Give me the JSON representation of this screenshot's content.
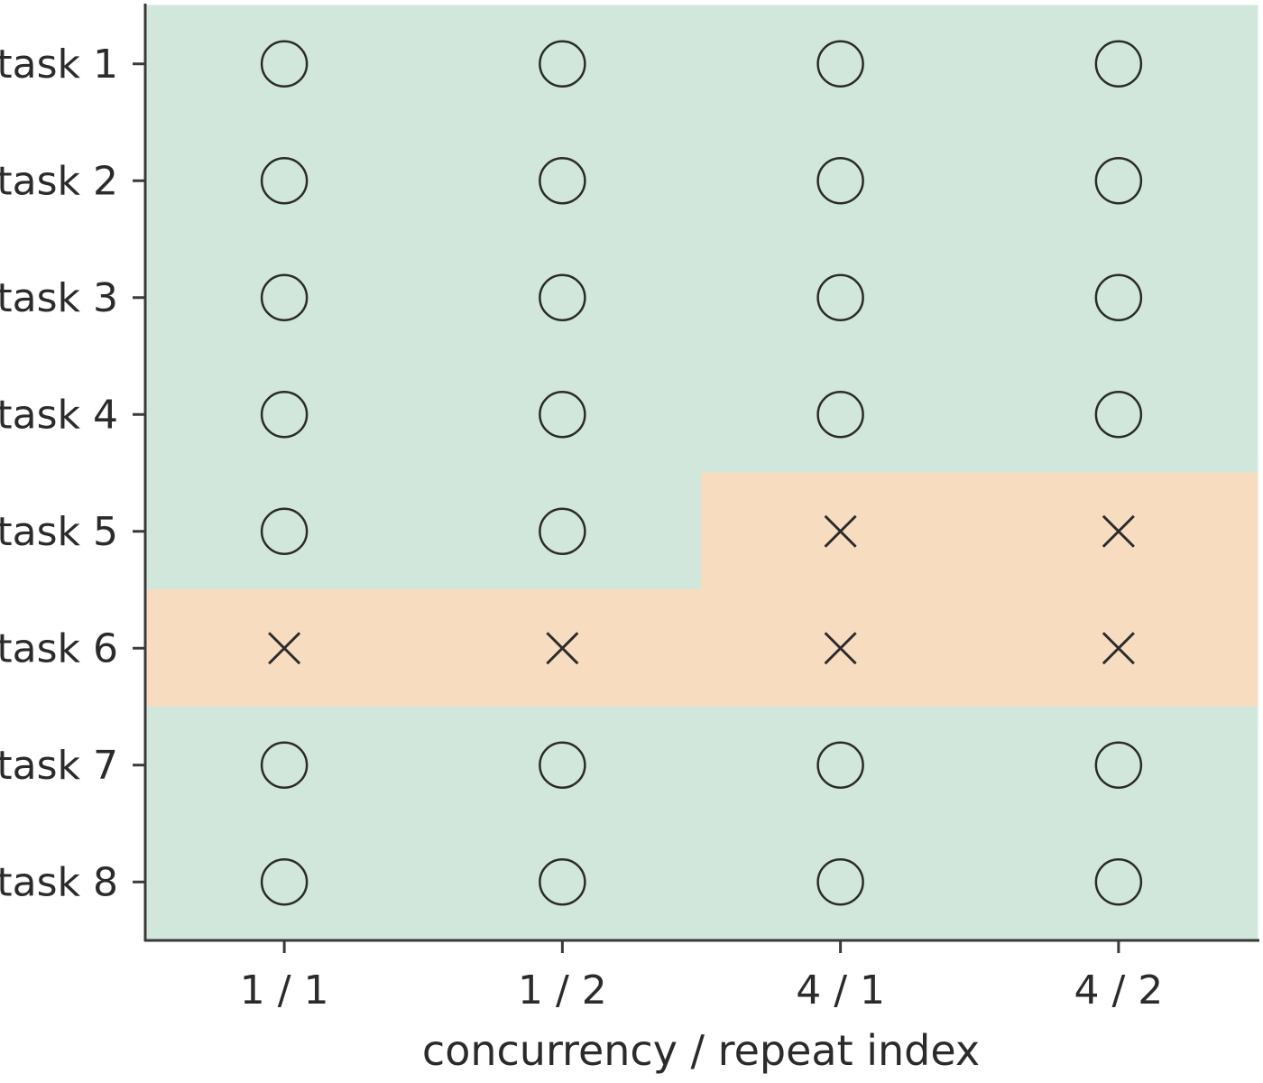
{
  "chart_data": {
    "type": "heatmap",
    "xlabel": "concurrency / repeat index",
    "ylabel": "",
    "x_categories": [
      "1 / 1",
      "1 / 2",
      "4 / 1",
      "4 / 2"
    ],
    "y_categories": [
      "task 1",
      "task 2",
      "task 3",
      "task 4",
      "task 5",
      "task 6",
      "task 7",
      "task 8"
    ],
    "values": [
      [
        "pass",
        "pass",
        "pass",
        "pass"
      ],
      [
        "pass",
        "pass",
        "pass",
        "pass"
      ],
      [
        "pass",
        "pass",
        "pass",
        "pass"
      ],
      [
        "pass",
        "pass",
        "pass",
        "pass"
      ],
      [
        "pass",
        "pass",
        "fail",
        "fail"
      ],
      [
        "fail",
        "fail",
        "fail",
        "fail"
      ],
      [
        "pass",
        "pass",
        "pass",
        "pass"
      ],
      [
        "pass",
        "pass",
        "pass",
        "pass"
      ]
    ],
    "markers": {
      "pass": "circle",
      "fail": "cross"
    },
    "colors": {
      "pass": "#d1e7dc",
      "fail": "#f8dcbf",
      "marker": "#2b2b2b",
      "axis": "#3a3a3a"
    },
    "grid": false,
    "legend": "none"
  }
}
